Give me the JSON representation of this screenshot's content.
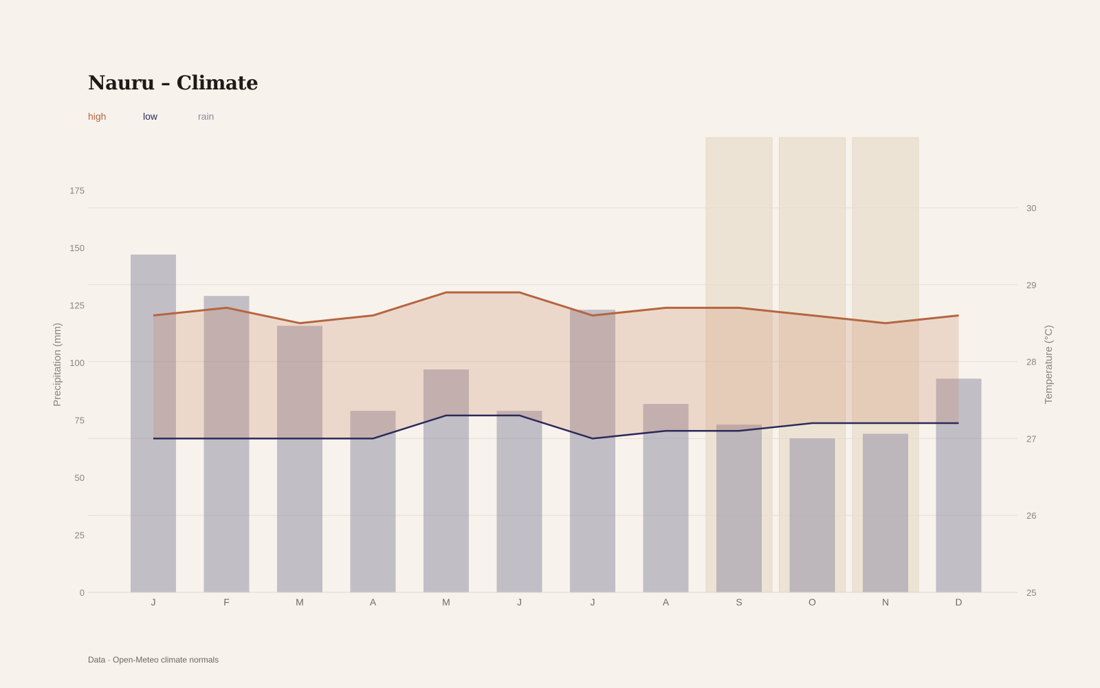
{
  "title": "Nauru – Climate",
  "footer": "Data · Open-Meteo climate normals",
  "chart_data": {
    "type": "bar+line",
    "categories": [
      "J",
      "F",
      "M",
      "A",
      "M",
      "J",
      "J",
      "A",
      "S",
      "O",
      "N",
      "D"
    ],
    "series": [
      {
        "name": "rain",
        "axis": "left",
        "type": "bar",
        "color": "#8e8aa0",
        "values": [
          147,
          129,
          116,
          79,
          97,
          79,
          123,
          82,
          73,
          67,
          69,
          93
        ]
      },
      {
        "name": "high",
        "axis": "right",
        "type": "line",
        "color": "#b5653f",
        "values": [
          28.6,
          28.7,
          28.5,
          28.6,
          28.9,
          28.9,
          28.6,
          28.7,
          28.7,
          28.6,
          28.5,
          28.6
        ]
      },
      {
        "name": "low",
        "axis": "right",
        "type": "line",
        "color": "#2b2a5a",
        "values": [
          27.0,
          27.0,
          27.0,
          27.0,
          27.3,
          27.3,
          27.0,
          27.1,
          27.1,
          27.2,
          27.2,
          27.2
        ]
      }
    ],
    "highlight_months": [
      8,
      9,
      10
    ],
    "ylabel_left": "Precipitation (mm)",
    "ylabel_right": "Temperature (°C)",
    "yticks_left": [
      0,
      25,
      50,
      75,
      100,
      125,
      150,
      175
    ],
    "yticks_right": [
      25,
      26,
      27,
      28,
      29,
      30
    ],
    "ylim_right": [
      25,
      30
    ],
    "legend_position": "top-left"
  }
}
